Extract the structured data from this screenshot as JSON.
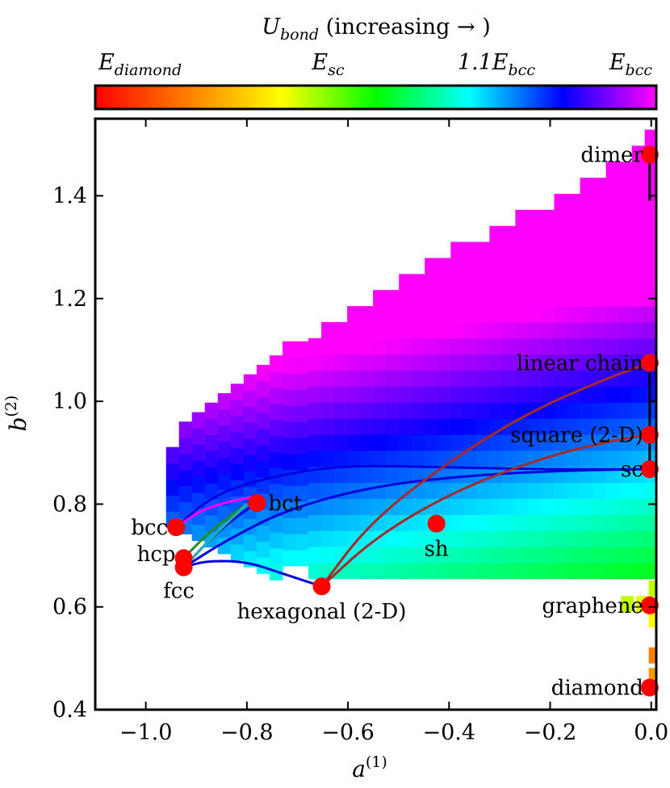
{
  "chart_data": {
    "type": "heatmap",
    "title": "",
    "colorbar": {
      "title": "U_bond (increasing → )",
      "title_main": "U",
      "title_sub": "bond",
      "title_rest": " (increasing → )",
      "colormap": "gist_rainbow",
      "colors": [
        "#ff0000",
        "#ff7f00",
        "#ffff00",
        "#00ff00",
        "#00ffff",
        "#0000ff",
        "#ff00ff"
      ],
      "ticks": [
        {
          "label": "E_diamond",
          "main": "E",
          "sub": "diamond",
          "fraction": 0.0
        },
        {
          "label": "E_sc",
          "main": "E",
          "sub": "sc",
          "fraction": 0.415
        },
        {
          "label": "1.1E_bcc",
          "main": "1.1E",
          "sub": "bcc",
          "fraction": 0.715
        },
        {
          "label": "E_bcc",
          "main": "E",
          "sub": "bcc",
          "fraction": 1.0
        }
      ]
    },
    "xlabel": "a^(1)",
    "xlabel_main": "a",
    "xlabel_sup": "(1)",
    "ylabel": "b^(2)",
    "ylabel_main": "b",
    "ylabel_sup": "(2)",
    "xlim": [
      -1.1,
      0.01
    ],
    "ylim": [
      0.4,
      1.55
    ],
    "xticks": [
      -1.0,
      -0.8,
      -0.6,
      -0.4,
      -0.2,
      0.0
    ],
    "xtick_labels": [
      "−1.0",
      "−0.8",
      "−0.6",
      "−0.4",
      "−0.2",
      "0.0"
    ],
    "yticks": [
      0.4,
      0.6,
      0.8,
      1.0,
      1.2,
      1.4
    ],
    "ytick_labels": [
      "0.4",
      "0.6",
      "0.8",
      "1.0",
      "1.2",
      "1.4"
    ],
    "heatmap": {
      "cell_dx": 0.0256,
      "cell_dy": 0.0312,
      "note": "Energy field shown as colored cells inside the attainable region; value is fraction along colorbar."
    },
    "structures": [
      {
        "label": "dimer",
        "x": -0.003,
        "y": 1.48,
        "anchor": "left"
      },
      {
        "label": "linear chain",
        "x": -0.003,
        "y": 1.075,
        "anchor": "left"
      },
      {
        "label": "square (2-D)",
        "x": -0.003,
        "y": 0.935,
        "anchor": "left"
      },
      {
        "label": "sc",
        "x": -0.003,
        "y": 0.868,
        "anchor": "left"
      },
      {
        "label": "graphene",
        "x": -0.003,
        "y": 0.603,
        "anchor": "left"
      },
      {
        "label": "diamond",
        "x": -0.003,
        "y": 0.443,
        "anchor": "left"
      },
      {
        "label": "bcc",
        "x": -0.94,
        "y": 0.755,
        "anchor": "left"
      },
      {
        "label": "hcp",
        "x": -0.925,
        "y": 0.695,
        "anchor": "left"
      },
      {
        "label": "fcc",
        "x": -0.925,
        "y": 0.677,
        "anchor": "below"
      },
      {
        "label": "bct",
        "x": -0.78,
        "y": 0.802,
        "anchor": "right"
      },
      {
        "label": "sh",
        "x": -0.425,
        "y": 0.762,
        "anchor": "below"
      },
      {
        "label": "hexagonal (2-D)",
        "x": -0.652,
        "y": 0.64,
        "anchor": "below"
      }
    ],
    "paths": [
      {
        "color": "#0000dd",
        "points": [
          [
            -0.925,
            0.677
          ],
          [
            -0.88,
            0.69
          ],
          [
            -0.8,
            0.688
          ],
          [
            -0.73,
            0.665
          ],
          [
            -0.652,
            0.64
          ]
        ]
      },
      {
        "color": "#0000dd",
        "points": [
          [
            -0.925,
            0.677
          ],
          [
            -0.84,
            0.73
          ],
          [
            -0.72,
            0.79
          ],
          [
            -0.55,
            0.835
          ],
          [
            -0.35,
            0.857
          ],
          [
            -0.15,
            0.866
          ],
          [
            -0.003,
            0.868
          ]
        ]
      },
      {
        "color": "#0000dd",
        "points": [
          [
            -0.94,
            0.755
          ],
          [
            -0.87,
            0.815
          ],
          [
            -0.77,
            0.85
          ],
          [
            -0.62,
            0.875
          ],
          [
            -0.45,
            0.873
          ],
          [
            -0.25,
            0.868
          ],
          [
            -0.003,
            0.868
          ]
        ]
      },
      {
        "color": "#0000dd",
        "points": [
          [
            -0.925,
            0.677
          ],
          [
            -0.86,
            0.745
          ],
          [
            -0.8,
            0.79
          ],
          [
            -0.78,
            0.802
          ]
        ]
      },
      {
        "color": "#228b22",
        "points": [
          [
            -0.925,
            0.695
          ],
          [
            -0.87,
            0.75
          ],
          [
            -0.8,
            0.8
          ]
        ]
      },
      {
        "color": "#20b2aa",
        "points": [
          [
            -0.925,
            0.677
          ],
          [
            -0.87,
            0.735
          ],
          [
            -0.8,
            0.8
          ]
        ]
      },
      {
        "color": "#ff00ff",
        "points": [
          [
            -0.94,
            0.755
          ],
          [
            -0.88,
            0.795
          ],
          [
            -0.78,
            0.816
          ]
        ]
      },
      {
        "color": "#a52a2a",
        "points": [
          [
            -0.652,
            0.64
          ],
          [
            -0.56,
            0.76
          ],
          [
            -0.42,
            0.87
          ],
          [
            -0.25,
            0.975
          ],
          [
            -0.1,
            1.04
          ],
          [
            -0.003,
            1.075
          ]
        ]
      },
      {
        "color": "#a52a2a",
        "points": [
          [
            -0.652,
            0.64
          ],
          [
            -0.54,
            0.74
          ],
          [
            -0.38,
            0.83
          ],
          [
            -0.2,
            0.895
          ],
          [
            -0.07,
            0.925
          ],
          [
            -0.003,
            0.935
          ]
        ]
      },
      {
        "color": "#000000",
        "points": [
          [
            -0.003,
            0.868
          ],
          [
            -0.003,
            1.075
          ]
        ]
      },
      {
        "color": "#000000",
        "points": [
          [
            -0.003,
            1.39
          ],
          [
            -0.003,
            1.48
          ]
        ]
      }
    ]
  }
}
